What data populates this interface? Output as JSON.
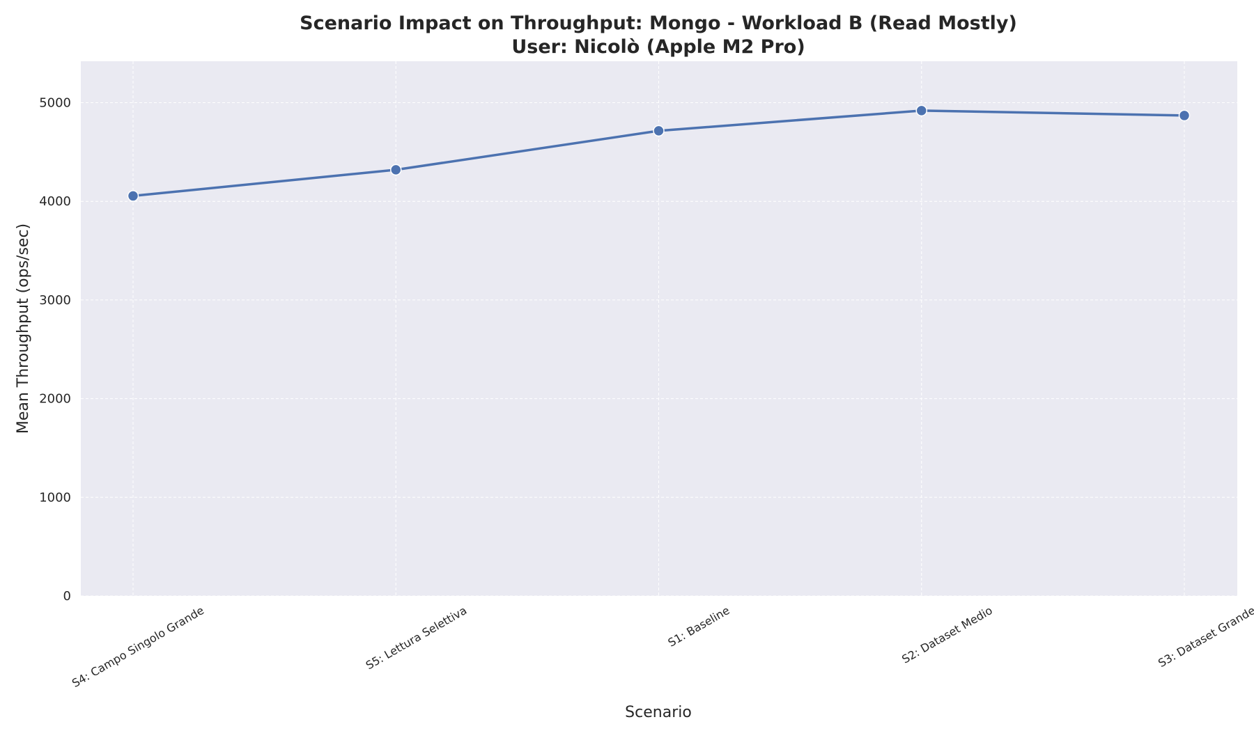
{
  "chart_data": {
    "type": "line",
    "title": "Scenario Impact on Throughput: Mongo - Workload B (Read Mostly)",
    "subtitle": "User: Nicolò (Apple M2 Pro)",
    "xlabel": "Scenario",
    "ylabel": "Mean Throughput (ops/sec)",
    "categories": [
      "S4: Campo Singolo Grande",
      "S5: Lettura Selettiva",
      "S1: Baseline",
      "S2: Dataset Medio",
      "S3: Dataset Grande"
    ],
    "series": [
      {
        "values": [
          4055,
          4320,
          4715,
          4920,
          4870
        ],
        "color": "#4c72b0"
      }
    ],
    "ylim": [
      0,
      5420
    ],
    "yticks": [
      0,
      1000,
      2000,
      3000,
      4000,
      5000
    ],
    "grid": true,
    "legend": "none",
    "colors": {
      "background": "#eaeaf2",
      "grid": "#ffffff",
      "text": "#262626"
    }
  }
}
